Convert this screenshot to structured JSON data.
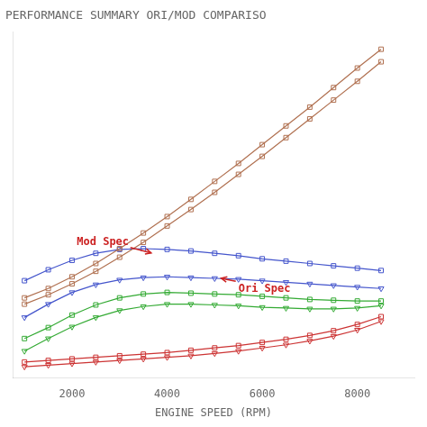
{
  "chart_data": {
    "type": "line",
    "title": "PERFORMANCE SUMMARY ORI/MOD COMPARISO",
    "xlabel": "ENGINE SPEED (RPM)",
    "x": [
      1000,
      1500,
      2000,
      2500,
      3000,
      3500,
      4000,
      4500,
      5000,
      5500,
      6000,
      6500,
      7000,
      7500,
      8000,
      8500
    ],
    "series": [
      {
        "color": "#b07050",
        "marker": "square",
        "values": [
          0.3,
          0.42,
          0.57,
          0.74,
          0.93,
          1.13,
          1.34,
          1.56,
          1.79,
          2.02,
          2.26,
          2.5,
          2.74,
          2.99,
          3.24,
          3.48
        ]
      },
      {
        "color": "#b07050",
        "marker": "square",
        "values": [
          0.22,
          0.34,
          0.48,
          0.64,
          0.82,
          1.01,
          1.22,
          1.43,
          1.65,
          1.88,
          2.11,
          2.35,
          2.59,
          2.83,
          3.07,
          3.32
        ]
      },
      {
        "color": "#4455cc",
        "marker": "square",
        "values": [
          0.52,
          0.66,
          0.78,
          0.87,
          0.92,
          0.93,
          0.92,
          0.9,
          0.87,
          0.84,
          0.8,
          0.77,
          0.74,
          0.71,
          0.68,
          0.65
        ]
      },
      {
        "color": "#4455cc",
        "marker": "triangle_down",
        "values": [
          0.05,
          0.22,
          0.37,
          0.47,
          0.53,
          0.56,
          0.57,
          0.56,
          0.55,
          0.54,
          0.52,
          0.5,
          0.48,
          0.46,
          0.44,
          0.42
        ]
      },
      {
        "color": "#33aa33",
        "marker": "square",
        "values": [
          -0.22,
          -0.08,
          0.08,
          0.21,
          0.3,
          0.35,
          0.37,
          0.36,
          0.35,
          0.34,
          0.32,
          0.3,
          0.28,
          0.27,
          0.26,
          0.26
        ]
      },
      {
        "color": "#33aa33",
        "marker": "triangle_down",
        "values": [
          -0.38,
          -0.22,
          -0.07,
          0.05,
          0.14,
          0.19,
          0.22,
          0.22,
          0.21,
          0.2,
          0.18,
          0.17,
          0.16,
          0.16,
          0.17,
          0.2
        ]
      },
      {
        "color": "#cc3333",
        "marker": "square",
        "values": [
          -0.52,
          -0.5,
          -0.48,
          -0.46,
          -0.44,
          -0.42,
          -0.4,
          -0.37,
          -0.34,
          -0.31,
          -0.27,
          -0.23,
          -0.18,
          -0.12,
          -0.04,
          0.06
        ]
      },
      {
        "color": "#cc3333",
        "marker": "triangle_down",
        "values": [
          -0.58,
          -0.56,
          -0.54,
          -0.52,
          -0.5,
          -0.48,
          -0.46,
          -0.44,
          -0.41,
          -0.38,
          -0.34,
          -0.3,
          -0.25,
          -0.19,
          -0.11,
          0.0
        ]
      }
    ],
    "annotations": [
      {
        "text": "Mod Spec",
        "xy": [
          3700,
          0.87
        ],
        "xytext": [
          2100,
          0.98
        ],
        "color": "#cc2222"
      },
      {
        "text": "Ori Spec",
        "xy": [
          5100,
          0.555
        ],
        "xytext": [
          5500,
          0.38
        ],
        "color": "#cc2222"
      }
    ],
    "xlim": [
      750,
      9200
    ],
    "ylim": [
      -0.72,
      3.7
    ],
    "xticks": [
      2000,
      4000,
      6000,
      8000
    ],
    "tick_labels": "x",
    "grid": false
  }
}
